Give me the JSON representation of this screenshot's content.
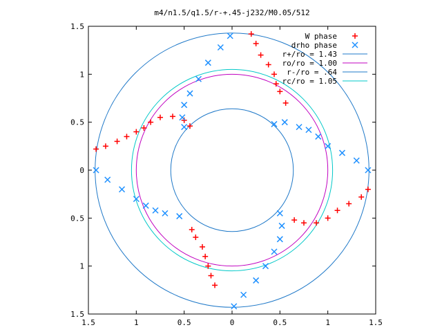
{
  "chart_data": {
    "type": "scatter",
    "title": "m4/n1.5/q1.5/r-+.45-j232/M0.05/512",
    "xlabel": "",
    "ylabel": "",
    "xlim": [
      -1.5,
      1.5
    ],
    "ylim": [
      -1.5,
      1.5
    ],
    "x_tick_labels": [
      "1.5",
      "1",
      "0.5",
      "0",
      "0.5",
      "1",
      "1.5"
    ],
    "x_tick_values": [
      -1.5,
      -1,
      -0.5,
      0,
      0.5,
      1,
      1.5
    ],
    "y_tick_labels": [
      "1.5",
      "1",
      "0.5",
      "0",
      "0.5",
      "1",
      "1.5"
    ],
    "y_tick_values": [
      1.5,
      1,
      0.5,
      0,
      -0.5,
      -1,
      -1.5
    ],
    "grid": false,
    "legend_position": "top-right",
    "series": [
      {
        "name": "W phase",
        "marker": "plus",
        "color": "#ff0000",
        "x": [
          -1.42,
          -1.32,
          -1.2,
          -1.1,
          -1.0,
          -0.92,
          -0.85,
          -0.75,
          -0.62,
          -0.5,
          -0.44,
          -0.42,
          -0.38,
          -0.31,
          -0.28,
          -0.25,
          -0.22,
          -0.18,
          0.2,
          0.25,
          0.3,
          0.38,
          0.44,
          0.46,
          0.5,
          0.56,
          0.65,
          0.75,
          0.88,
          1.0,
          1.1,
          1.22,
          1.35,
          1.42
        ],
        "y": [
          0.22,
          0.25,
          0.3,
          0.35,
          0.4,
          0.44,
          0.5,
          0.55,
          0.56,
          0.52,
          0.46,
          -0.62,
          -0.7,
          -0.8,
          -0.9,
          -1.0,
          -1.1,
          -1.2,
          1.42,
          1.32,
          1.2,
          1.1,
          1.0,
          0.9,
          0.82,
          0.7,
          -0.52,
          -0.55,
          -0.55,
          -0.5,
          -0.42,
          -0.35,
          -0.28,
          -0.2
        ]
      },
      {
        "name": "drho phase",
        "marker": "cross",
        "color": "#1e90ff",
        "x": [
          -0.5,
          -0.52,
          -0.5,
          -0.44,
          -0.35,
          -0.25,
          -0.12,
          -0.02,
          -1.42,
          -1.3,
          -1.15,
          -1.0,
          -0.9,
          -0.8,
          -0.7,
          -0.55,
          0.02,
          0.12,
          0.25,
          0.35,
          0.44,
          0.5,
          0.52,
          0.5,
          0.44,
          0.55,
          0.7,
          0.8,
          0.9,
          1.0,
          1.15,
          1.3,
          1.42
        ],
        "y": [
          0.45,
          0.55,
          0.68,
          0.8,
          0.95,
          1.12,
          1.28,
          1.4,
          0.0,
          -0.1,
          -0.2,
          -0.3,
          -0.37,
          -0.42,
          -0.45,
          -0.48,
          -1.42,
          -1.3,
          -1.15,
          -1.0,
          -0.85,
          -0.72,
          -0.58,
          -0.45,
          0.48,
          0.5,
          0.45,
          0.42,
          0.35,
          0.25,
          0.18,
          0.1,
          0.0
        ]
      },
      {
        "name": "r+/ro = 1.43",
        "type": "circle",
        "radius": 1.43,
        "color": "#1e78c8"
      },
      {
        "name": "ro/ro = 1.00",
        "type": "circle",
        "radius": 1.0,
        "color": "#c000c0"
      },
      {
        "name": "r-/ro = .64",
        "type": "circle",
        "radius": 0.64,
        "color": "#1e78c8"
      },
      {
        "name": "rc/ro = 1.05",
        "type": "circle",
        "radius": 1.05,
        "color": "#00c8c8"
      }
    ]
  }
}
